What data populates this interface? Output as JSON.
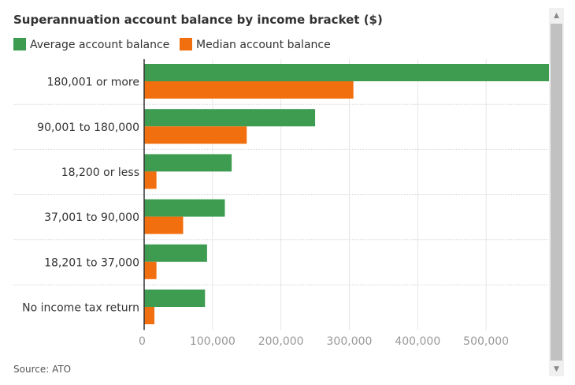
{
  "chart_data": {
    "type": "bar",
    "orientation": "horizontal",
    "title": "Superannuation account balance by income bracket ($)",
    "source": "Source: ATO",
    "categories": [
      "180,001 or more",
      "90,001 to 180,000",
      "18,200 or less",
      "37,001 to 90,000",
      "18,201 to 37,000",
      "No income tax return"
    ],
    "series": [
      {
        "name": "Average account balance",
        "color": "#3d9c4f",
        "values": [
          592000,
          250000,
          128000,
          118000,
          92000,
          89000
        ]
      },
      {
        "name": "Median account balance",
        "color": "#f26f0f",
        "values": [
          306000,
          150000,
          18000,
          57000,
          18000,
          15000
        ]
      }
    ],
    "xlim": [
      0,
      592000
    ],
    "xticks": [
      0,
      100000,
      200000,
      300000,
      400000,
      500000
    ],
    "xtick_labels": [
      "0",
      "100,000",
      "200,000",
      "300,000",
      "400,000",
      "500,000"
    ],
    "grid": true,
    "legend": "top-left"
  },
  "scrollbar": {
    "up_icon": "▲",
    "down_icon": "▼"
  }
}
